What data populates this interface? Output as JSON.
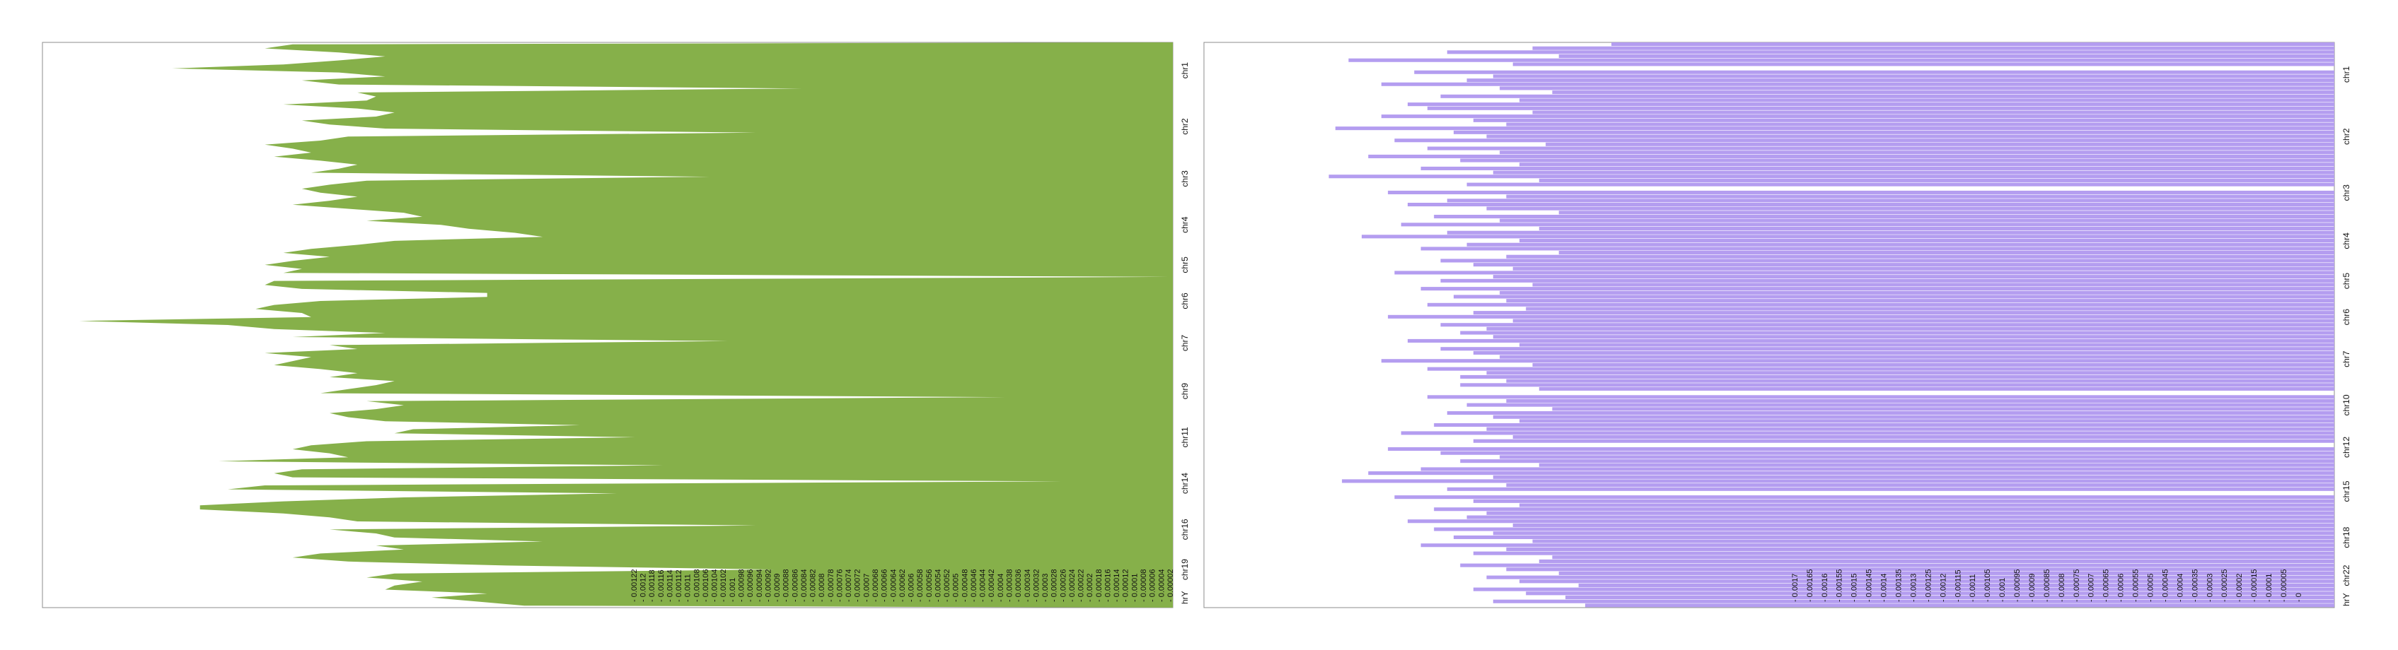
{
  "chart_data": [
    {
      "type": "area",
      "orientation": "horizontal",
      "title": "",
      "xlabel": "",
      "ylabel": "",
      "x_axis": "reversed",
      "grid": false,
      "legend": "none",
      "color": "#86B04A",
      "y_tick_labels": [
        "chr1",
        "chr2",
        "chr3",
        "chr4",
        "chr5",
        "chr6",
        "chr7",
        "chr9",
        "chr11",
        "chr14",
        "chr16",
        "chr19",
        "hrY"
      ],
      "x_tick_labels": [
        "0.00122",
        "0.0012",
        "0.00118",
        "0.00116",
        "0.00114",
        "0.00112",
        "0.0011",
        "0.00108",
        "0.00106",
        "0.00104",
        "0.00102",
        "0.001",
        "0.00098",
        "0.00096",
        "0.00094",
        "0.00092",
        "0.0009",
        "0.00088",
        "0.00086",
        "0.00084",
        "0.00082",
        "0.0008",
        "0.00078",
        "0.00076",
        "0.00074",
        "0.00072",
        "0.0007",
        "0.00068",
        "0.00066",
        "0.00064",
        "0.00062",
        "0.0006",
        "0.00058",
        "0.00056",
        "0.00054",
        "0.00052",
        "0.0005",
        "0.00048",
        "0.00046",
        "0.00044",
        "0.00042",
        "0.0004",
        "0.00038",
        "0.00036",
        "0.00034",
        "0.00032",
        "0.0003",
        "0.00028",
        "0.00026",
        "0.00024",
        "0.00022",
        "0.0002",
        "0.00018",
        "0.00016",
        "0.00014",
        "0.00012",
        "0.0001",
        "0.00008",
        "0.00006",
        "0.00004",
        "0.00002"
      ],
      "x_range": [
        0.00122,
        0.0
      ],
      "series": [
        {
          "chromosomes": [
            {
              "chr": "chr1",
              "values": [
                0.00095,
                0.00098,
                0.0009,
                0.00085,
                0.0009,
                0.00096,
                0.00108,
                0.0009,
                0.00085,
                0.00094,
                0.0009,
                0.0004,
                0.00088,
                0.00086
              ]
            },
            {
              "chr": "chr2",
              "values": [
                0.00087,
                0.00096,
                0.00088,
                0.00084,
                0.00086,
                0.00094,
                0.00091,
                0.00085,
                0.00045,
                0.00089,
                0.00092,
                0.00098,
                0.00095,
                0.00093
              ]
            },
            {
              "chr": "chr3",
              "values": [
                0.00097,
                0.00092,
                0.00088,
                0.0009,
                0.00093,
                0.0005,
                0.00087,
                0.00091,
                0.00094,
                0.00092,
                0.00088,
                0.00091
              ]
            },
            {
              "chr": "chr4",
              "values": [
                0.00095,
                0.00089,
                0.00083,
                0.00081,
                0.00087,
                0.00079,
                0.00076,
                0.00071,
                0.00068,
                0.00084,
                0.00088
              ]
            },
            {
              "chr": "chr5",
              "values": [
                0.00093,
                0.00096,
                0.00091,
                0.00095,
                0.00098,
                0.00094,
                0.00096,
                0.0,
                0.00097
              ]
            },
            {
              "chr": "chr6",
              "values": [
                0.00098,
                0.00094,
                0.00074,
                0.00074,
                0.00092,
                0.00097,
                0.00099,
                0.00094,
                0.00093
              ]
            },
            {
              "chr": "chr7",
              "values": [
                0.00118,
                0.00102,
                0.00097,
                0.00085,
                0.00095,
                0.00048,
                0.00091,
                0.00088,
                0.00098,
                0.00093,
                0.00095,
                0.00097
              ]
            },
            {
              "chr": "chr9",
              "values": [
                0.00092,
                0.00088,
                0.00091,
                0.00084,
                0.00086,
                0.00089,
                0.00092,
                0.00018,
                0.00087,
                0.00083,
                0.00086,
                0.00091
              ]
            },
            {
              "chr": "chr11",
              "values": [
                0.00089,
                0.00085,
                0.00064,
                0.00082,
                0.00084,
                0.00058,
                0.00087,
                0.00093,
                0.00095,
                0.00091,
                0.00089
              ]
            },
            {
              "chr": "chr14",
              "values": [
                0.00103,
                0.00055,
                0.00094,
                0.00097,
                0.00095,
                0.00012,
                0.00098,
                0.00102,
                0.0006,
                0.00083,
                0.00096,
                0.00105
              ]
            },
            {
              "chr": "chr16",
              "values": [
                0.00105,
                0.00096,
                0.00091,
                0.00088,
                0.00045,
                0.00091,
                0.00086,
                0.00084,
                0.00068,
                0.00086,
                0.00083
              ]
            },
            {
              "chr": "chr19",
              "values": [
                0.00092,
                0.00095,
                0.00089,
                0.00072,
                0.00043,
                0.00084,
                0.00087,
                0.00081,
                0.00084
              ]
            },
            {
              "chr": "hrY",
              "values": [
                0.00085,
                0.00074,
                0.0008,
                0.00075,
                0.0007
              ]
            }
          ]
        }
      ]
    },
    {
      "type": "bar",
      "orientation": "horizontal",
      "title": "",
      "xlabel": "",
      "ylabel": "",
      "x_axis": "reversed",
      "grid": false,
      "legend": "none",
      "color": "#B49DF0",
      "y_tick_labels": [
        "chr1",
        "chr2",
        "chr3",
        "chr4",
        "chr5",
        "chr6",
        "chr7",
        "chr10",
        "chr12",
        "chr15",
        "chr18",
        "chr22",
        "hrY"
      ],
      "x_tick_labels": [
        "0.0017",
        "0.00165",
        "0.0016",
        "0.00155",
        "0.0015",
        "0.00145",
        "0.0014",
        "0.00135",
        "0.0013",
        "0.00125",
        "0.0012",
        "0.00115",
        "0.0011",
        "0.00105",
        "0.001",
        "0.00095",
        "0.0009",
        "0.00085",
        "0.0008",
        "0.00075",
        "0.0007",
        "0.00065",
        "0.0006",
        "0.00055",
        "0.0005",
        "0.00045",
        "0.0004",
        "0.00035",
        "0.0003",
        "0.00025",
        "0.0002",
        "0.00015",
        "0.0001",
        "0.00005",
        "0"
      ],
      "x_range": [
        0.00172,
        0.0
      ],
      "series": [
        {
          "chromosomes": [
            {
              "chr": "chr1",
              "values": [
                0.0011,
                0.00122,
                0.00135,
                0.00118,
                0.0015,
                0.00125,
                0.0,
                0.0014,
                0.00128,
                0.00132,
                0.00145,
                0.00127,
                0.00119,
                0.00136,
                0.00124,
                0.00141
              ]
            },
            {
              "chr": "chr2",
              "values": [
                0.00138,
                0.00122,
                0.00145,
                0.00131,
                0.00126,
                0.00152,
                0.00134,
                0.00129,
                0.00143,
                0.0012,
                0.00138,
                0.00127,
                0.00147,
                0.00133,
                0.00124
              ]
            },
            {
              "chr": "chr3",
              "values": [
                0.00139,
                0.00128,
                0.00153,
                0.00121,
                0.00132,
                0.0,
                0.00144,
                0.00126,
                0.00135,
                0.00141,
                0.00129,
                0.00118,
                0.00137
              ]
            },
            {
              "chr": "chr4",
              "values": [
                0.00127,
                0.00142,
                0.00121,
                0.00135,
                0.00148,
                0.00124,
                0.00132,
                0.00139,
                0.00118,
                0.00126,
                0.00136
              ]
            },
            {
              "chr": "chr5",
              "values": [
                0.00131,
                0.00125,
                0.00143,
                0.00128,
                0.00136,
                0.00122,
                0.00139,
                0.00127,
                0.00134
              ]
            },
            {
              "chr": "chr6",
              "values": [
                0.00126,
                0.00138,
                0.00123,
                0.00131,
                0.00144,
                0.00125,
                0.00136,
                0.00129,
                0.00133
              ]
            },
            {
              "chr": "chr7",
              "values": [
                0.00128,
                0.00141,
                0.00124,
                0.00136,
                0.00131,
                0.00127,
                0.00145,
                0.00122,
                0.00138,
                0.00129,
                0.00133,
                0.00126
              ]
            },
            {
              "chr": "chr10",
              "values": [
                0.00133,
                0.00121,
                0.0,
                0.00138,
                0.00126,
                0.00132,
                0.00119,
                0.00135,
                0.00128,
                0.00124,
                0.00137
              ]
            },
            {
              "chr": "chr12",
              "values": [
                0.00129,
                0.00142,
                0.00125,
                0.00131,
                0.0,
                0.00144,
                0.00136,
                0.00127,
                0.00133,
                0.00121
              ]
            },
            {
              "chr": "chr15",
              "values": [
                0.00139,
                0.00147,
                0.00128,
                0.00151,
                0.00126,
                0.00135,
                0.0,
                0.00143,
                0.00131,
                0.00124,
                0.00137,
                0.00129
              ]
            },
            {
              "chr": "chr18",
              "values": [
                0.00132,
                0.00141,
                0.00125,
                0.00137,
                0.00128,
                0.00134,
                0.00122,
                0.00139,
                0.00126,
                0.00131,
                0.00119
              ]
            },
            {
              "chr": "chr22",
              "values": [
                0.00121,
                0.00133,
                0.00126,
                0.00118,
                0.00129,
                0.00124,
                0.00115,
                0.00131
              ]
            },
            {
              "chr": "hrY",
              "values": [
                0.00123,
                0.00117,
                0.00128,
                0.00114
              ]
            }
          ]
        }
      ]
    }
  ]
}
